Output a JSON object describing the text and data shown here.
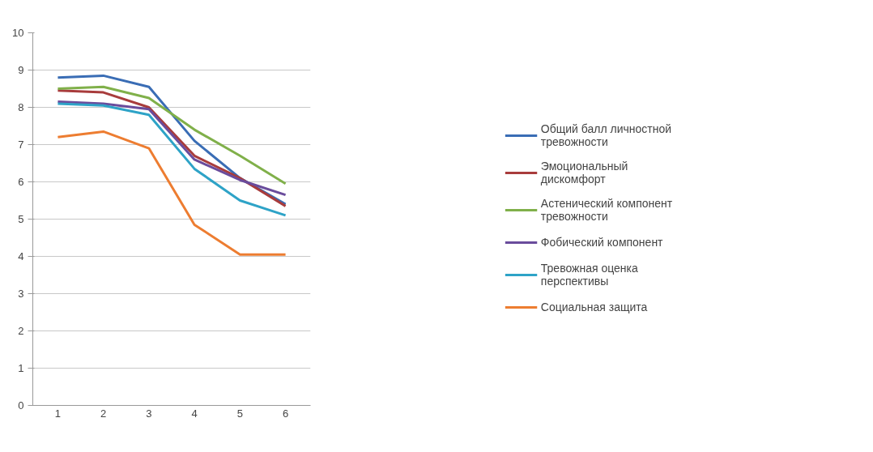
{
  "chart_data": {
    "type": "line",
    "categories": [
      "1",
      "2",
      "3",
      "4",
      "5",
      "6"
    ],
    "ylim": [
      0,
      10
    ],
    "yticks": [
      0,
      1,
      2,
      3,
      4,
      5,
      6,
      7,
      8,
      9,
      10
    ],
    "grid": "y",
    "legend": "right",
    "marker": "none",
    "line_style": "solid",
    "series": [
      {
        "name": "Общий балл личностной тревожности",
        "color": "#3a6db5",
        "values": [
          8.8,
          8.85,
          8.55,
          7.1,
          6.1,
          5.4
        ]
      },
      {
        "name": "Эмоциональный дискомфорт",
        "color": "#a83c3c",
        "values": [
          8.45,
          8.4,
          8.0,
          6.7,
          6.1,
          5.35
        ]
      },
      {
        "name": "Астенический компонент тревожности",
        "color": "#80b04a",
        "values": [
          8.5,
          8.55,
          8.25,
          7.4,
          6.7,
          5.95
        ]
      },
      {
        "name": "Фобический компонент",
        "color": "#6a4c9c",
        "values": [
          8.15,
          8.1,
          7.95,
          6.6,
          6.05,
          5.65
        ]
      },
      {
        "name": "Тревожная оценка перспективы",
        "color": "#2ea3c7",
        "values": [
          8.1,
          8.05,
          7.8,
          6.35,
          5.5,
          5.1
        ]
      },
      {
        "name": "Социальная защита",
        "color": "#ed7d31",
        "values": [
          7.2,
          7.35,
          6.9,
          4.85,
          4.05,
          4.05
        ]
      }
    ]
  }
}
